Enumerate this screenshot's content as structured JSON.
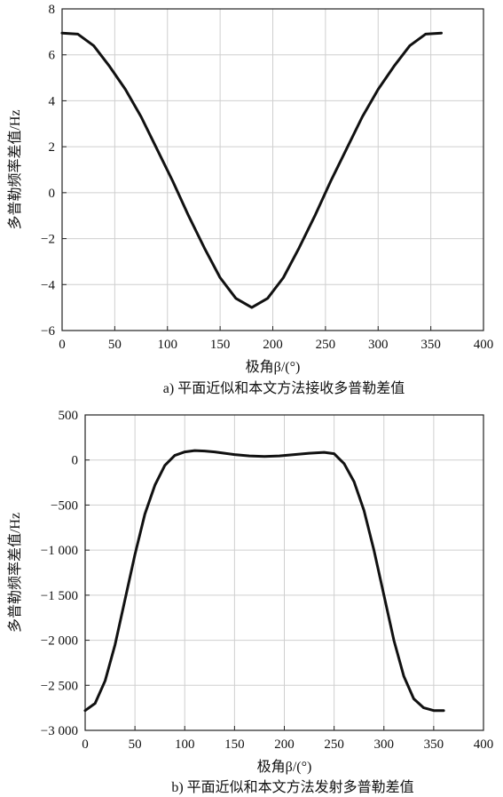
{
  "chart_data": [
    {
      "type": "line",
      "xlabel": "极角β/(°)",
      "ylabel": "多普勒频率差值/Hz",
      "caption": "a) 平面近似和本文方法接收多普勒差值",
      "xlim": [
        0,
        400
      ],
      "ylim": [
        -6,
        8
      ],
      "xticks": [
        0,
        50,
        100,
        150,
        200,
        250,
        300,
        350,
        400
      ],
      "yticks": [
        -6,
        -4,
        -2,
        0,
        2,
        4,
        6,
        8
      ],
      "xtick_labels": [
        "0",
        "50",
        "100",
        "150",
        "200",
        "250",
        "300",
        "350",
        "400"
      ],
      "ytick_labels": [
        "−6",
        "−4",
        "−2",
        "0",
        "2",
        "4",
        "6",
        "8"
      ],
      "grid": true,
      "series": [
        {
          "x": [
            0,
            15,
            30,
            45,
            60,
            75,
            90,
            105,
            120,
            135,
            150,
            165,
            180,
            195,
            210,
            225,
            240,
            255,
            270,
            285,
            300,
            315,
            330,
            345,
            360
          ],
          "y": [
            6.95,
            6.9,
            6.4,
            5.5,
            4.5,
            3.3,
            1.9,
            0.5,
            -1.0,
            -2.4,
            -3.7,
            -4.6,
            -5.0,
            -4.6,
            -3.7,
            -2.4,
            -1.0,
            0.5,
            1.9,
            3.3,
            4.5,
            5.5,
            6.4,
            6.9,
            6.95
          ]
        }
      ]
    },
    {
      "type": "line",
      "xlabel": "极角β/(°)",
      "ylabel": "多普勒频率差值/Hz",
      "caption": "b) 平面近似和本文方法发射多普勒差值",
      "xlim": [
        0,
        400
      ],
      "ylim": [
        -3000,
        500
      ],
      "xticks": [
        0,
        50,
        100,
        150,
        200,
        250,
        300,
        350,
        400
      ],
      "yticks": [
        -3000,
        -2500,
        -2000,
        -1500,
        -1000,
        -500,
        0,
        500
      ],
      "xtick_labels": [
        "0",
        "50",
        "100",
        "150",
        "200",
        "250",
        "300",
        "350",
        "400"
      ],
      "ytick_labels": [
        "−3 000",
        "−2 500",
        "−2 000",
        "−1 500",
        "−1 000",
        "−500",
        "0",
        "500"
      ],
      "grid": true,
      "series": [
        {
          "x": [
            0,
            10,
            20,
            30,
            40,
            50,
            60,
            70,
            80,
            90,
            100,
            110,
            120,
            130,
            140,
            150,
            165,
            180,
            195,
            210,
            225,
            240,
            250,
            260,
            270,
            280,
            290,
            300,
            310,
            320,
            330,
            340,
            350,
            360
          ],
          "y": [
            -2780,
            -2700,
            -2450,
            -2050,
            -1550,
            -1050,
            -600,
            -280,
            -60,
            50,
            90,
            105,
            100,
            90,
            75,
            60,
            45,
            40,
            45,
            60,
            75,
            85,
            70,
            -40,
            -240,
            -560,
            -1000,
            -1500,
            -2000,
            -2400,
            -2650,
            -2750,
            -2780,
            -2780
          ]
        }
      ]
    }
  ]
}
